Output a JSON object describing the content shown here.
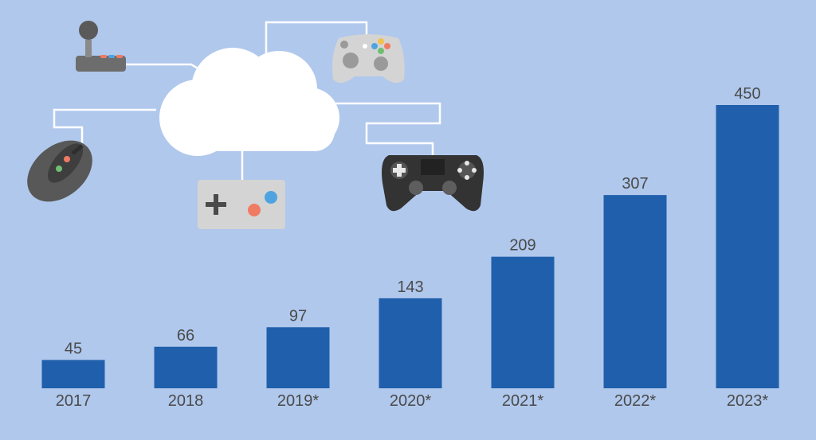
{
  "chart_data": {
    "type": "bar",
    "categories": [
      "2017",
      "2018",
      "2019*",
      "2020*",
      "2021*",
      "2022*",
      "2023*"
    ],
    "values": [
      45,
      66,
      97,
      143,
      209,
      307,
      450
    ],
    "title": "",
    "xlabel": "",
    "ylabel": "",
    "ylim": [
      0,
      450
    ],
    "grid": false,
    "legend": "none",
    "bar_color": "#205fab",
    "background_color": "#b0c8ec",
    "label_color": "#4a4a4a"
  },
  "illustration": {
    "items": [
      "cloud-icon",
      "arcade-joystick-icon",
      "gamepad-white-icon",
      "gaming-mouse-icon",
      "retro-controller-icon",
      "gamepad-dark-icon"
    ]
  }
}
